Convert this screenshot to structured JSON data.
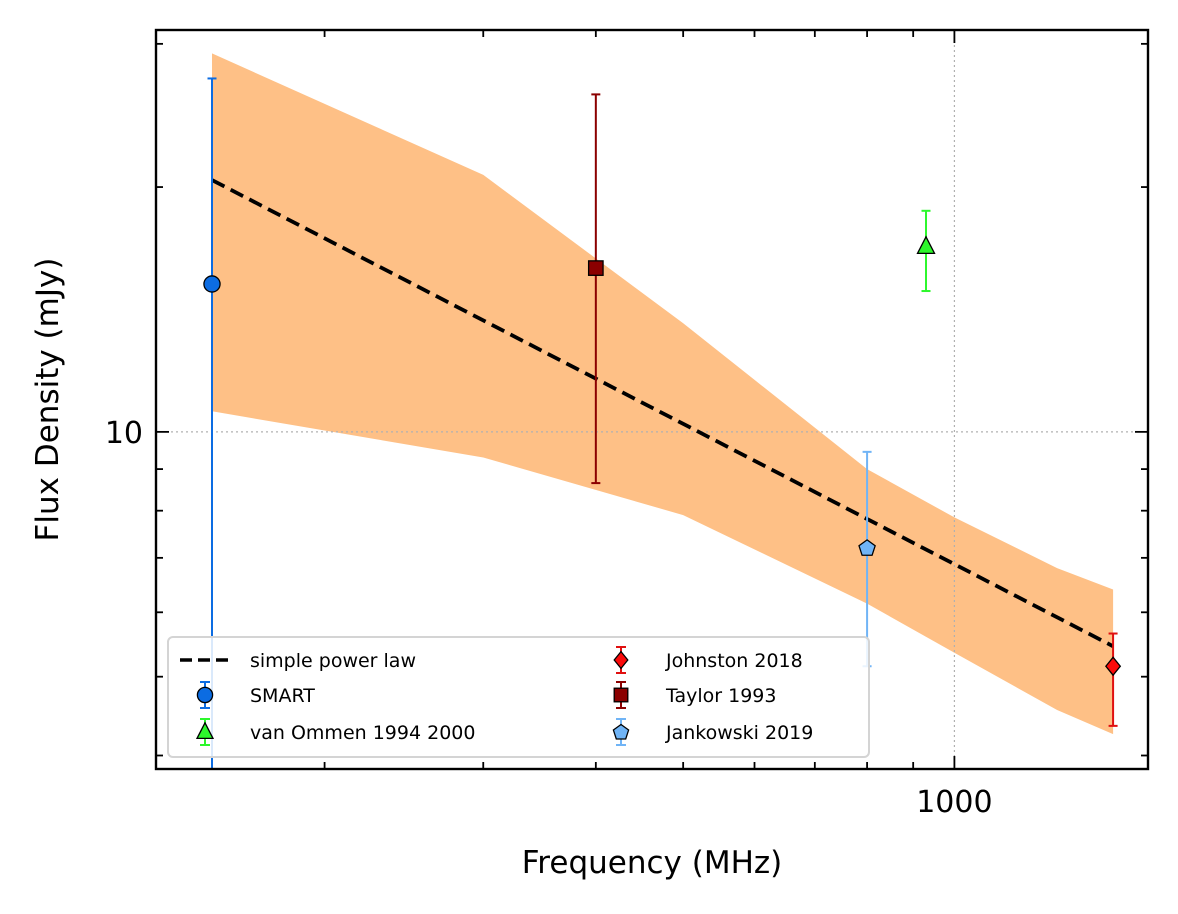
{
  "chart_data": {
    "type": "scatter",
    "title": "",
    "xlabel": "Frequency (MHz)",
    "ylabel": "Flux Density (mJy)",
    "x_scale": "log",
    "y_scale": "log",
    "xlim": [
      130,
      1640
    ],
    "ylim": [
      3.85,
      31.2
    ],
    "x_major_ticks": [
      {
        "value": 1000,
        "label": "1000"
      }
    ],
    "y_major_ticks": [
      {
        "value": 10,
        "label": "10"
      }
    ],
    "grid": true,
    "legend_position": "lower-left",
    "fit": {
      "name": "simple power law",
      "style": "dashed",
      "color": "#000000",
      "x": [
        150,
        1500
      ],
      "y": [
        20.4,
        5.45
      ]
    },
    "uncertainty_band": {
      "color": "#fec086",
      "x": [
        150,
        300,
        500,
        800,
        1000,
        1300,
        1500
      ],
      "upper": [
        29.2,
        20.7,
        13.6,
        9.0,
        7.85,
        6.8,
        6.4
      ],
      "lower": [
        10.6,
        9.3,
        7.9,
        6.15,
        5.35,
        4.55,
        4.25
      ]
    },
    "series": [
      {
        "name": "SMART",
        "marker": "circle",
        "color": "#0c6ce2",
        "errcolor": "#0c6ce2",
        "x": [
          150
        ],
        "y": [
          15.2
        ],
        "yerr_low": [
          3.85
        ],
        "yerr_high": [
          27.2
        ]
      },
      {
        "name": "van Ommen 1994 2000",
        "marker": "triangle",
        "color": "#2df72c",
        "errcolor": "#2df72c",
        "x": [
          930
        ],
        "y": [
          16.9
        ],
        "yerr_low": [
          14.9
        ],
        "yerr_high": [
          18.7
        ]
      },
      {
        "name": "Johnston 2018",
        "marker": "diamond",
        "color": "#fb0a0a",
        "errcolor": "#e01010",
        "x": [
          1500
        ],
        "y": [
          5.15
        ],
        "yerr_low": [
          4.35
        ],
        "yerr_high": [
          5.65
        ]
      },
      {
        "name": "Taylor 1993",
        "marker": "square",
        "color": "#8b0000",
        "errcolor": "#8b0000",
        "x": [
          400
        ],
        "y": [
          15.9
        ],
        "yerr_low": [
          8.65
        ],
        "yerr_high": [
          26.0
        ]
      },
      {
        "name": "Jankowski 2019",
        "marker": "pentagon",
        "color": "#70b4f6",
        "errcolor": "#70b4f6",
        "x": [
          800
        ],
        "y": [
          7.2
        ],
        "yerr_low": [
          5.15
        ],
        "yerr_high": [
          9.45
        ]
      }
    ]
  }
}
